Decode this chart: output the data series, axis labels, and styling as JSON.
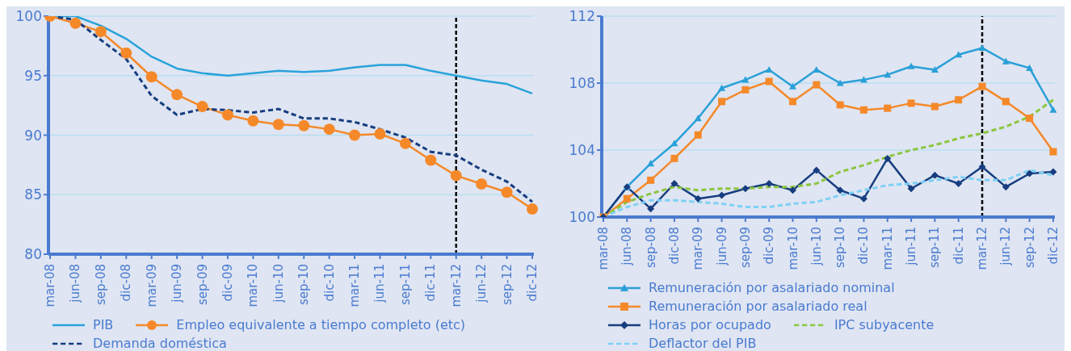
{
  "chart_data": [
    {
      "type": "line",
      "categories": [
        "mar-08",
        "jun-08",
        "sep-08",
        "dic-08",
        "mar-09",
        "jun-09",
        "sep-09",
        "dic-09",
        "mar-10",
        "jun-10",
        "sep-10",
        "dic-10",
        "mar-11",
        "jun-11",
        "sep-11",
        "dic-11",
        "mar-12",
        "jun-12",
        "sep-12",
        "dic-12"
      ],
      "series": [
        {
          "name": "PIB",
          "color": "#29a3db",
          "marker": "none",
          "line_style": "solid",
          "values": [
            100,
            100,
            99.2,
            98.1,
            96.6,
            95.6,
            95.2,
            95.0,
            95.2,
            95.4,
            95.3,
            95.4,
            95.7,
            95.9,
            95.9,
            95.4,
            95.0,
            94.6,
            94.3,
            93.5
          ]
        },
        {
          "name": "Empleo equivalente a tiempo completo (etc)",
          "color": "#f5892a",
          "marker": "circle",
          "line_style": "solid",
          "values": [
            100,
            99.4,
            98.7,
            96.9,
            94.9,
            93.4,
            92.4,
            91.7,
            91.2,
            90.9,
            90.8,
            90.5,
            90.0,
            90.1,
            89.3,
            87.9,
            86.6,
            85.9,
            85.2,
            83.8
          ]
        },
        {
          "name": "Demanda doméstica",
          "color": "#173d80",
          "marker": "none",
          "line_style": "dashed",
          "values": [
            100,
            99.7,
            98.0,
            96.4,
            93.3,
            91.7,
            92.2,
            92.1,
            91.9,
            92.2,
            91.4,
            91.4,
            91.1,
            90.5,
            89.8,
            88.6,
            88.3,
            87.1,
            86.1,
            84.4
          ]
        }
      ],
      "ylim": [
        80,
        100
      ],
      "yticks": [
        80,
        85,
        90,
        95,
        100
      ],
      "grid": "y",
      "legend": "bottom",
      "ref_lines": [
        {
          "axis": "x",
          "value": "mar-12",
          "color": "#000000",
          "line_style": "dashed"
        }
      ]
    },
    {
      "type": "line",
      "categories": [
        "mar-08",
        "jun-08",
        "sep-08",
        "dic-08",
        "mar-09",
        "jun-09",
        "sep-09",
        "dic-09",
        "mar-10",
        "jun-10",
        "sep-10",
        "dic-10",
        "mar-11",
        "jun-11",
        "sep-11",
        "dic-11",
        "mar-12",
        "jun-12",
        "sep-12",
        "dic-12"
      ],
      "series": [
        {
          "name": "Remuneración por asalariado nominal",
          "color": "#2aa0d8",
          "marker": "triangle",
          "line_style": "solid",
          "values": [
            100,
            101.8,
            103.2,
            104.4,
            105.9,
            107.7,
            108.2,
            108.8,
            107.8,
            108.8,
            108.0,
            108.2,
            108.5,
            109.0,
            108.8,
            109.7,
            110.1,
            109.3,
            108.9,
            106.4
          ]
        },
        {
          "name": "Remuneración por asalariado real",
          "color": "#f5892a",
          "marker": "square",
          "line_style": "solid",
          "values": [
            100,
            101.1,
            102.2,
            103.5,
            104.9,
            106.9,
            107.6,
            108.1,
            106.9,
            107.9,
            106.7,
            106.4,
            106.5,
            106.8,
            106.6,
            107.0,
            107.8,
            106.9,
            105.9,
            103.9
          ]
        },
        {
          "name": "Horas por ocupado",
          "color": "#173d80",
          "marker": "diamond",
          "line_style": "solid",
          "values": [
            100,
            101.8,
            100.5,
            102.0,
            101.1,
            101.3,
            101.7,
            102.0,
            101.6,
            102.8,
            101.6,
            101.1,
            103.5,
            101.7,
            102.5,
            102.0,
            103.0,
            101.8,
            102.6,
            102.7
          ]
        },
        {
          "name": "IPC subyacente",
          "color": "#8cc63f",
          "marker": "none",
          "line_style": "dashed",
          "values": [
            100,
            100.9,
            101.4,
            101.8,
            101.6,
            101.7,
            101.7,
            101.8,
            101.8,
            102.0,
            102.7,
            103.1,
            103.6,
            104.0,
            104.3,
            104.7,
            105.0,
            105.4,
            106.0,
            107.0
          ]
        },
        {
          "name": "Deflactor del PIB",
          "color": "#7fd0f5",
          "marker": "none",
          "line_style": "dashed",
          "values": [
            100,
            100.6,
            101.0,
            101.0,
            100.9,
            100.8,
            100.6,
            100.6,
            100.8,
            100.9,
            101.3,
            101.6,
            101.9,
            102.0,
            102.2,
            102.4,
            102.2,
            102.2,
            102.8,
            102.5
          ]
        }
      ],
      "ylim": [
        100,
        112
      ],
      "yticks": [
        100,
        104,
        108,
        112
      ],
      "grid": "y",
      "legend": "bottom",
      "ref_lines": [
        {
          "axis": "x",
          "value": "mar-12",
          "color": "#000000",
          "line_style": "dashed"
        }
      ]
    }
  ]
}
